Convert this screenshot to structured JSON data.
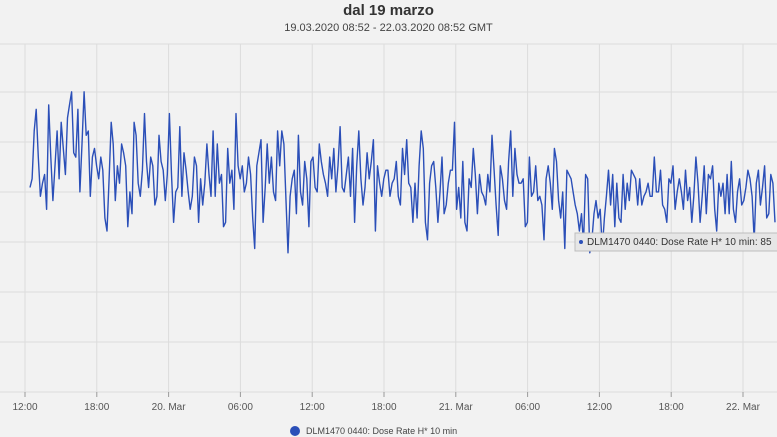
{
  "title": "dal 19 marzo",
  "subtitle": "19.03.2020 08:52 - 22.03.2020 08:52 GMT",
  "colors": {
    "series": "#2b4fb8",
    "grid": "#dcdcdc",
    "background": "#f2f2f2"
  },
  "tooltip": {
    "text": "DLM1470 0440: Dose Rate H* 10 min: 85"
  },
  "legend": {
    "label": "DLM1470 0440: Dose Rate H* 10 min",
    "placement": "bottom-center"
  },
  "chart_data": {
    "type": "line",
    "title": "dal 19 marzo",
    "subtitle": "19.03.2020 08:52 - 22.03.2020 08:52 GMT",
    "x_ticks": [
      "12:00",
      "18:00",
      "20. Mar",
      "06:00",
      "12:00",
      "18:00",
      "21. Mar",
      "06:00",
      "12:00",
      "18:00",
      "22. Mar"
    ],
    "xlim": [
      "19.03.2020 08:52",
      "22.03.2020 08:52"
    ],
    "grid": true,
    "series": [
      {
        "name": "DLM1470 0440: Dose Rate H* 10 min",
        "sample_interval_minutes": 10,
        "x_start": "19.03.2020 12:00",
        "values": [
          235,
          245,
          300,
          325,
          270,
          225,
          240,
          250,
          210,
          330,
          270,
          220,
          260,
          300,
          245,
          310,
          280,
          250,
          315,
          330,
          345,
          275,
          270,
          325,
          230,
          285,
          345,
          295,
          300,
          225,
          270,
          280,
          260,
          245,
          270,
          255,
          200,
          185,
          245,
          310,
          285,
          220,
          260,
          240,
          285,
          275,
          260,
          190,
          230,
          205,
          310,
          295,
          240,
          225,
          255,
          320,
          265,
          235,
          270,
          260,
          215,
          225,
          295,
          265,
          255,
          220,
          250,
          320,
          250,
          195,
          230,
          235,
          305,
          225,
          275,
          255,
          230,
          210,
          225,
          270,
          260,
          195,
          245,
          215,
          240,
          285,
          250,
          225,
          300,
          225,
          285,
          240,
          250,
          190,
          195,
          280,
          240,
          255,
          210,
          320,
          260,
          245,
          260,
          230,
          240,
          270,
          250,
          200,
          165,
          260,
          275,
          290,
          195,
          235,
          285,
          240,
          270,
          230,
          220,
          300,
          260,
          300,
          285,
          220,
          160,
          225,
          245,
          255,
          205,
          295,
          230,
          215,
          265,
          245,
          190,
          265,
          270,
          235,
          230,
          285,
          265,
          250,
          240,
          225,
          270,
          245,
          280,
          230,
          260,
          305,
          235,
          230,
          250,
          270,
          225,
          280,
          195,
          260,
          300,
          245,
          215,
          235,
          275,
          245,
          265,
          290,
          185,
          260,
          240,
          225,
          245,
          255,
          255,
          225,
          240,
          245,
          265,
          225,
          215,
          280,
          250,
          290,
          240,
          235,
          195,
          240,
          200,
          260,
          300,
          280,
          195,
          175,
          240,
          260,
          265,
          235,
          195,
          230,
          270,
          205,
          215,
          240,
          255,
          255,
          310,
          210,
          235,
          200,
          265,
          195,
          185,
          245,
          235,
          280,
          250,
          205,
          250,
          230,
          225,
          215,
          250,
          230,
          295,
          255,
          215,
          180,
          260,
          245,
          220,
          210,
          265,
          300,
          225,
          280,
          250,
          240,
          240,
          245,
          190,
          195,
          270,
          225,
          230,
          260,
          220,
          225,
          215,
          175,
          245,
          260,
          240,
          210,
          280,
          265,
          220,
          200,
          230,
          165,
          255,
          250,
          245,
          230,
          215,
          205,
          185,
          205,
          170,
          250,
          245,
          160,
          175,
          205,
          220,
          200,
          210,
          165,
          200,
          225,
          255,
          215,
          250,
          190,
          240,
          200,
          195,
          250,
          210,
          240,
          220,
          255,
          250,
          245,
          215,
          245,
          215,
          225,
          230,
          240,
          225,
          225,
          270,
          230,
          230,
          255,
          215,
          210,
          195,
          245,
          240,
          260,
          210,
          230,
          245,
          230,
          210,
          255,
          220,
          235,
          195,
          225,
          270,
          240,
          195,
          225,
          260,
          205,
          250,
          245,
          260,
          210,
          185,
          240,
          225,
          240,
          205,
          250,
          205,
          265,
          210,
          195,
          230,
          245,
          215,
          220,
          235,
          255,
          245,
          225,
          175,
          240,
          255,
          215,
          235,
          260,
          200,
          205,
          250,
          240,
          195
        ]
      }
    ]
  }
}
